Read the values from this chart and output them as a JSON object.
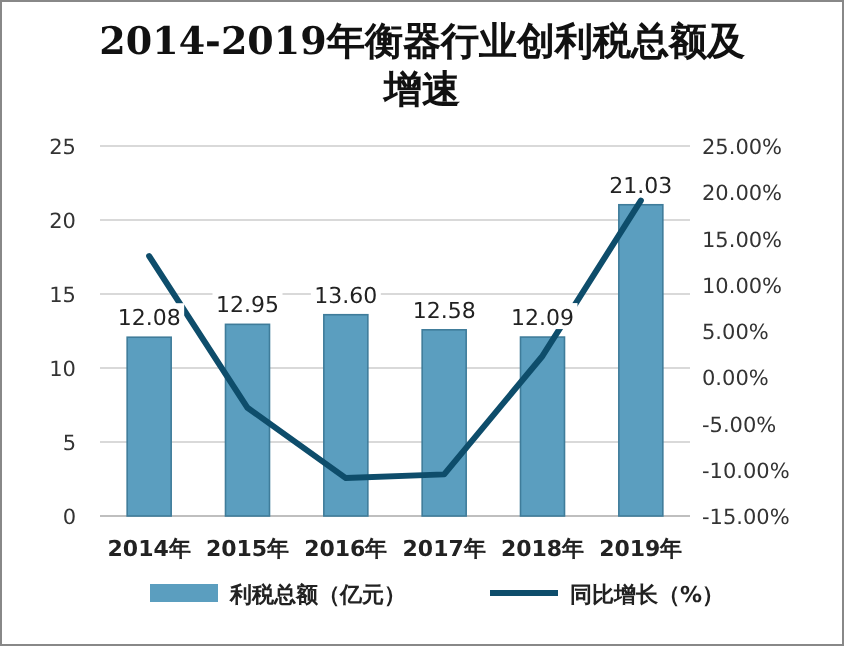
{
  "chart_data": {
    "type": "bar",
    "title": "2014-2019年衡器行业创利税总额及增速",
    "categories": [
      "2014年",
      "2015年",
      "2016年",
      "2017年",
      "2018年",
      "2019年"
    ],
    "series": [
      {
        "name": "利税总额（亿元）",
        "color": "#5b9ebf",
        "values": [
          12.08,
          12.95,
          13.6,
          12.58,
          12.09,
          21.03
        ],
        "value_labels": [
          "12.08",
          "12.95",
          "13.60",
          "12.58",
          "12.09",
          "21.03"
        ]
      },
      {
        "name": "同比增长（%）",
        "type": "line",
        "axis": "y2",
        "color": "#0e4d6b",
        "values": [
          13.1,
          -3.3,
          -10.9,
          -10.5,
          2.3,
          19.1
        ]
      }
    ],
    "ylim": [
      0,
      25
    ],
    "yticks": [
      0,
      5,
      10,
      15,
      20,
      25
    ],
    "y2lim": [
      -15,
      25
    ],
    "y2ticks": [
      {
        "value": -15,
        "label": "-15.00%"
      },
      {
        "value": -10,
        "label": "-10.00%"
      },
      {
        "value": -5,
        "label": "-5.00%"
      },
      {
        "value": 0,
        "label": "0.00%"
      },
      {
        "value": 5,
        "label": "5.00%"
      },
      {
        "value": 10,
        "label": "10.00%"
      },
      {
        "value": 15,
        "label": "15.00%"
      },
      {
        "value": 20,
        "label": "20.00%"
      },
      {
        "value": 25,
        "label": "25.00%"
      }
    ],
    "grid": "y",
    "legend": "bottom",
    "marker": "none",
    "line_style": "solid"
  }
}
